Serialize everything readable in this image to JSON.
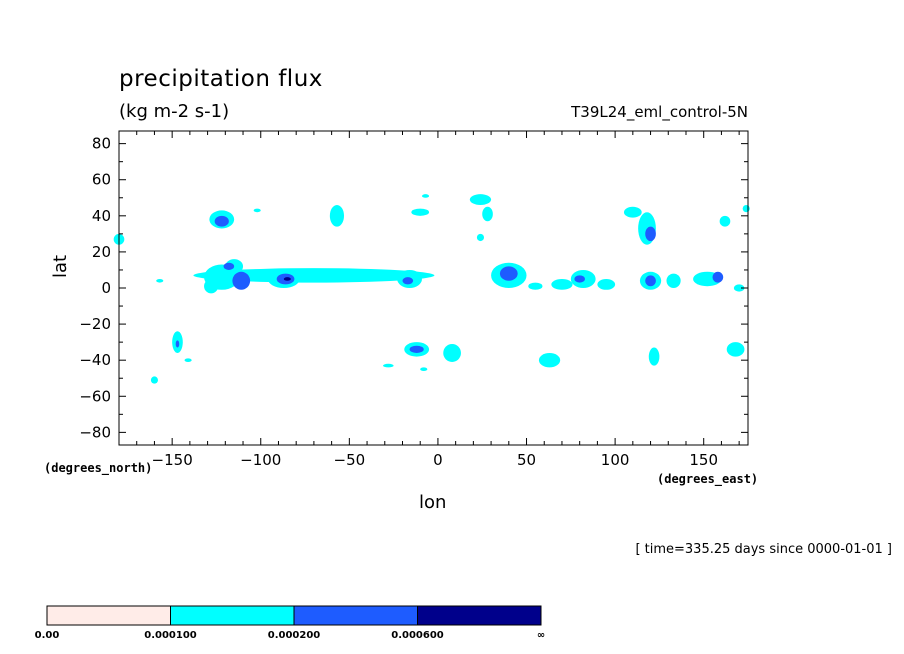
{
  "header": {
    "title": "precipitation flux",
    "units": "(kg m-2 s-1)",
    "run_name": "T39L24_eml_control-5N",
    "timestamp": "[ time=335.25 days since 0000-01-01 ]"
  },
  "chart_data": {
    "type": "contour-map",
    "title": "precipitation flux",
    "units": "(kg m-2 s-1)",
    "xlabel": "lon",
    "ylabel": "lat",
    "x_units": "(degrees_east)",
    "y_units": "(degrees_north)",
    "xlim": [
      -180,
      175
    ],
    "ylim": [
      -87,
      87
    ],
    "x_ticks": [
      -150,
      -100,
      -50,
      0,
      50,
      100,
      150
    ],
    "y_ticks": [
      80,
      60,
      40,
      20,
      0,
      -20,
      -40,
      -60,
      -80
    ],
    "levels": [
      "0.00",
      "0.000100",
      "0.000200",
      "0.000600",
      "∞"
    ],
    "level_colors": [
      "#ffece8",
      "#00ffff",
      "#1e5cff",
      "#00008b"
    ],
    "regions": [
      {
        "lon": -122,
        "lat": 38,
        "dlon": 7,
        "dlat": 5,
        "level": 1
      },
      {
        "lon": -122,
        "lat": 37,
        "dlon": 4,
        "dlat": 3,
        "level": 2
      },
      {
        "lon": -180,
        "lat": 27,
        "dlon": 3,
        "dlat": 3,
        "level": 1
      },
      {
        "lon": -102,
        "lat": 43,
        "dlon": 2,
        "dlat": 1,
        "level": 1
      },
      {
        "lon": -57,
        "lat": 40,
        "dlon": 4,
        "dlat": 6,
        "level": 1
      },
      {
        "lon": -10,
        "lat": 42,
        "dlon": 5,
        "dlat": 2,
        "level": 1
      },
      {
        "lon": -7,
        "lat": 51,
        "dlon": 2,
        "dlat": 1,
        "level": 1
      },
      {
        "lon": 24,
        "lat": 49,
        "dlon": 6,
        "dlat": 3,
        "level": 1
      },
      {
        "lon": 28,
        "lat": 41,
        "dlon": 3,
        "dlat": 4,
        "level": 1
      },
      {
        "lon": 24,
        "lat": 28,
        "dlon": 2,
        "dlat": 2,
        "level": 1
      },
      {
        "lon": 110,
        "lat": 42,
        "dlon": 5,
        "dlat": 3,
        "level": 1
      },
      {
        "lon": 118,
        "lat": 33,
        "dlon": 5,
        "dlat": 9,
        "level": 1
      },
      {
        "lon": 120,
        "lat": 30,
        "dlon": 3,
        "dlat": 4,
        "level": 2
      },
      {
        "lon": 162,
        "lat": 37,
        "dlon": 3,
        "dlat": 3,
        "level": 1
      },
      {
        "lon": 174,
        "lat": 44,
        "dlon": 2,
        "dlat": 2,
        "level": 1
      },
      {
        "lon": -70,
        "lat": 7,
        "dlon": 68,
        "dlat": 4,
        "level": 1
      },
      {
        "lon": -122,
        "lat": 6,
        "dlon": 10,
        "dlat": 7,
        "level": 1
      },
      {
        "lon": -115,
        "lat": 12,
        "dlon": 5,
        "dlat": 4,
        "level": 1
      },
      {
        "lon": -118,
        "lat": 12,
        "dlon": 3,
        "dlat": 2,
        "level": 2
      },
      {
        "lon": -128,
        "lat": 1,
        "dlon": 4,
        "dlat": 4,
        "level": 1
      },
      {
        "lon": -111,
        "lat": 4,
        "dlon": 5,
        "dlat": 5,
        "level": 2
      },
      {
        "lon": -87,
        "lat": 5,
        "dlon": 9,
        "dlat": 5,
        "level": 1
      },
      {
        "lon": -86,
        "lat": 5,
        "dlon": 5,
        "dlat": 3,
        "level": 2
      },
      {
        "lon": -85,
        "lat": 5,
        "dlon": 2,
        "dlat": 1,
        "level": 3
      },
      {
        "lon": -16,
        "lat": 5,
        "dlon": 7,
        "dlat": 5,
        "level": 1
      },
      {
        "lon": -17,
        "lat": 4,
        "dlon": 3,
        "dlat": 2,
        "level": 2
      },
      {
        "lon": 40,
        "lat": 7,
        "dlon": 10,
        "dlat": 7,
        "level": 1
      },
      {
        "lon": 40,
        "lat": 8,
        "dlon": 5,
        "dlat": 4,
        "level": 2
      },
      {
        "lon": 55,
        "lat": 1,
        "dlon": 4,
        "dlat": 2,
        "level": 1
      },
      {
        "lon": 70,
        "lat": 2,
        "dlon": 6,
        "dlat": 3,
        "level": 1
      },
      {
        "lon": 82,
        "lat": 5,
        "dlon": 7,
        "dlat": 5,
        "level": 1
      },
      {
        "lon": 80,
        "lat": 5,
        "dlon": 3,
        "dlat": 2,
        "level": 2
      },
      {
        "lon": 95,
        "lat": 2,
        "dlon": 5,
        "dlat": 3,
        "level": 1
      },
      {
        "lon": 120,
        "lat": 4,
        "dlon": 6,
        "dlat": 5,
        "level": 1
      },
      {
        "lon": 120,
        "lat": 4,
        "dlon": 3,
        "dlat": 3,
        "level": 2
      },
      {
        "lon": 133,
        "lat": 4,
        "dlon": 4,
        "dlat": 4,
        "level": 1
      },
      {
        "lon": 152,
        "lat": 5,
        "dlon": 8,
        "dlat": 4,
        "level": 1
      },
      {
        "lon": 158,
        "lat": 6,
        "dlon": 3,
        "dlat": 3,
        "level": 2
      },
      {
        "lon": 170,
        "lat": 0,
        "dlon": 3,
        "dlat": 2,
        "level": 1
      },
      {
        "lon": -157,
        "lat": 4,
        "dlon": 2,
        "dlat": 1,
        "level": 1
      },
      {
        "lon": -147,
        "lat": -30,
        "dlon": 3,
        "dlat": 6,
        "level": 1
      },
      {
        "lon": -147,
        "lat": -31,
        "dlon": 1,
        "dlat": 2,
        "level": 2
      },
      {
        "lon": -141,
        "lat": -40,
        "dlon": 2,
        "dlat": 1,
        "level": 1
      },
      {
        "lon": -160,
        "lat": -51,
        "dlon": 2,
        "dlat": 2,
        "level": 1
      },
      {
        "lon": -12,
        "lat": -34,
        "dlon": 7,
        "dlat": 4,
        "level": 1
      },
      {
        "lon": -12,
        "lat": -34,
        "dlon": 4,
        "dlat": 2,
        "level": 2
      },
      {
        "lon": 8,
        "lat": -36,
        "dlon": 5,
        "dlat": 5,
        "level": 1
      },
      {
        "lon": -8,
        "lat": -45,
        "dlon": 2,
        "dlat": 1,
        "level": 1
      },
      {
        "lon": -28,
        "lat": -43,
        "dlon": 3,
        "dlat": 1,
        "level": 1
      },
      {
        "lon": 63,
        "lat": -40,
        "dlon": 6,
        "dlat": 4,
        "level": 1
      },
      {
        "lon": 122,
        "lat": -38,
        "dlon": 3,
        "dlat": 5,
        "level": 1
      },
      {
        "lon": 168,
        "lat": -34,
        "dlon": 5,
        "dlat": 4,
        "level": 1
      }
    ]
  }
}
